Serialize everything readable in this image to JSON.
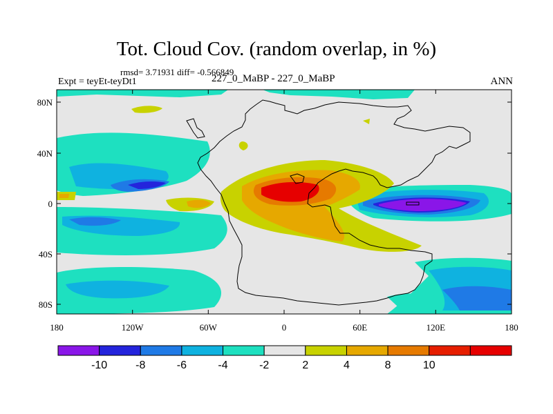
{
  "header": {
    "title": "Tot. Cloud Cov. (random overlap, in %)",
    "stats": "rmsd= 3.71931 diff= -0.566849",
    "expt": "Expt = teyEt-teyDt1",
    "case": "227_0_MaBP - 227_0_MaBP",
    "season": "ANN"
  },
  "axes": {
    "lat_ticks": [
      "80N",
      "40N",
      "0",
      "40S",
      "80S"
    ],
    "lon_ticks": [
      "180",
      "120W",
      "60W",
      "0",
      "60E",
      "120E",
      "180"
    ]
  },
  "colorbar": {
    "colors": [
      "#8a16e8",
      "#2424dc",
      "#1f7ae6",
      "#0fb2e0",
      "#1ee0c0",
      "#e6e6e6",
      "#c8d200",
      "#e6a800",
      "#e67a00",
      "#e61e00",
      "#e60000"
    ],
    "labels": [
      "-10",
      "-8",
      "-6",
      "-4",
      "-2",
      "2",
      "4",
      "8",
      "10"
    ]
  },
  "colors": {
    "background_field": "#e6e6e6",
    "coastline": "#000000"
  }
}
